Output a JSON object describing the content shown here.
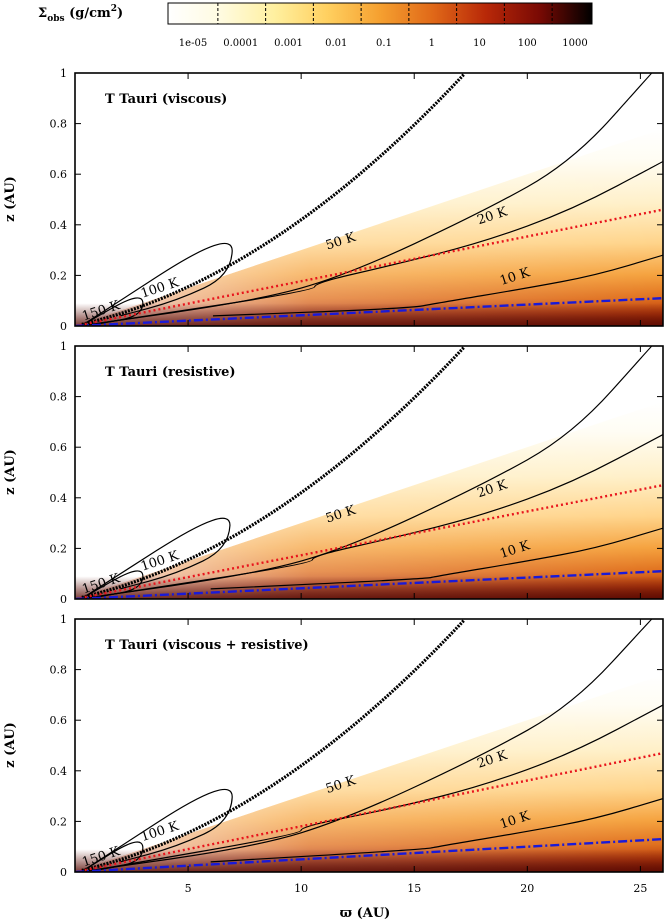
{
  "chart_data": {
    "type": "heatmap",
    "colorbar": {
      "label": "Σobs (g/cm2)",
      "label_parts": {
        "sigma": "Σ",
        "sub": "obs",
        "unit_open": " (g/cm",
        "sup": "2",
        "unit_close": ")"
      },
      "ticks": [
        "1e-05",
        "0.0001",
        "0.001",
        "0.01",
        "0.1",
        "1",
        "10",
        "100",
        "1000"
      ],
      "scale": "log",
      "colormap": [
        "#ffffff",
        "#fffbe0",
        "#fff0a0",
        "#ffd060",
        "#f5a030",
        "#e06818",
        "#b82808",
        "#7a0a04",
        "#000000"
      ]
    },
    "xlabel": "ϖ (AU)",
    "ylabel": "z (AU)",
    "xlim": [
      0,
      26
    ],
    "ylim": [
      0,
      1
    ],
    "xticks": [
      "5",
      "10",
      "15",
      "20",
      "25"
    ],
    "yticks": [
      "0",
      "0.2",
      "0.4",
      "0.6",
      "0.8",
      "1"
    ],
    "panels": [
      {
        "title": "T Tauri (viscous)",
        "photosphere_end_x": 17.2,
        "contours": [
          {
            "label": "150 K",
            "x": [
              0.3,
              3.0,
              3.0,
              1.0
            ],
            "y": [
              0.002,
              0.14,
              0.04,
              0.008
            ]
          },
          {
            "label": "100 K",
            "x": [
              0.3,
              7.0,
              6.9,
              4.5,
              2.0
            ],
            "y": [
              0.002,
              0.39,
              0.2,
              0.1,
              0.04
            ]
          },
          {
            "label": "50 K",
            "x": [
              0.5,
              8,
              12,
              18,
              22,
              25.5
            ],
            "y": [
              0.004,
              0.1,
              0.2,
              0.45,
              0.65,
              1.0
            ]
          },
          {
            "label": "20 K",
            "x": [
              1.0,
              10.6,
              10.6,
              14,
              18,
              22,
              26
            ],
            "y": [
              0.01,
              0.14,
              0.17,
              0.24,
              0.33,
              0.46,
              0.65
            ]
          },
          {
            "label": "10 K",
            "x": [
              6.1,
              14.8,
              16,
              20,
              23,
              26
            ],
            "y": [
              0.04,
              0.07,
              0.09,
              0.15,
              0.2,
              0.28
            ]
          }
        ],
        "z_tau_irradiation": {
          "x": [
            0,
            26
          ],
          "y": [
            0,
            0.46
          ]
        },
        "z_tau_midplane": {
          "x": [
            0,
            26
          ],
          "y": [
            0,
            0.11
          ]
        },
        "contour_labels": [
          {
            "text": "150 K",
            "x": 1.2,
            "y": 0.045
          },
          {
            "text": "100 K",
            "x": 3.8,
            "y": 0.135
          },
          {
            "text": "50 K",
            "x": 11.8,
            "y": 0.32
          },
          {
            "text": "20 K",
            "x": 18.5,
            "y": 0.42
          },
          {
            "text": "10 K",
            "x": 19.5,
            "y": 0.18
          }
        ]
      },
      {
        "title": "T Tauri (resistive)",
        "photosphere_end_x": 17.2,
        "contours": [
          {
            "label": "150 K",
            "x": [
              0.3,
              3.0,
              3.0,
              1.0
            ],
            "y": [
              0.002,
              0.14,
              0.04,
              0.008
            ]
          },
          {
            "label": "100 K",
            "x": [
              0.3,
              6.9,
              6.8,
              4.5,
              2.0
            ],
            "y": [
              0.002,
              0.38,
              0.2,
              0.1,
              0.04
            ]
          },
          {
            "label": "50 K",
            "x": [
              0.5,
              8,
              12,
              18,
              22,
              25.5
            ],
            "y": [
              0.004,
              0.1,
              0.2,
              0.45,
              0.65,
              1.0
            ]
          },
          {
            "label": "20 K",
            "x": [
              1.0,
              10.5,
              10.5,
              14,
              18,
              22,
              26
            ],
            "y": [
              0.01,
              0.14,
              0.17,
              0.24,
              0.33,
              0.46,
              0.65
            ]
          },
          {
            "label": "10 K",
            "x": [
              6.0,
              15.5,
              16,
              20,
              23,
              26
            ],
            "y": [
              0.04,
              0.08,
              0.09,
              0.15,
              0.2,
              0.28
            ]
          }
        ],
        "z_tau_irradiation": {
          "x": [
            0,
            26
          ],
          "y": [
            0,
            0.45
          ]
        },
        "z_tau_midplane": {
          "x": [
            0,
            26
          ],
          "y": [
            0,
            0.11
          ]
        },
        "contour_labels": [
          {
            "text": "150 K",
            "x": 1.2,
            "y": 0.045
          },
          {
            "text": "100 K",
            "x": 3.8,
            "y": 0.135
          },
          {
            "text": "50 K",
            "x": 11.8,
            "y": 0.32
          },
          {
            "text": "20 K",
            "x": 18.5,
            "y": 0.42
          },
          {
            "text": "10 K",
            "x": 19.5,
            "y": 0.18
          }
        ]
      },
      {
        "title": "T Tauri (viscous + resistive)",
        "photosphere_end_x": 17.2,
        "contours": [
          {
            "label": "150 K",
            "x": [
              0.3,
              3.0,
              3.0,
              1.0
            ],
            "y": [
              0.002,
              0.15,
              0.04,
              0.008
            ]
          },
          {
            "label": "100 K",
            "x": [
              0.3,
              7.0,
              6.9,
              4.5,
              2.0
            ],
            "y": [
              0.002,
              0.39,
              0.2,
              0.1,
              0.04
            ]
          },
          {
            "label": "50 K",
            "x": [
              0.5,
              8,
              12,
              18,
              22,
              25.5
            ],
            "y": [
              0.004,
              0.1,
              0.21,
              0.46,
              0.66,
              1.0
            ]
          },
          {
            "label": "20 K",
            "x": [
              1.0,
              10.0,
              10.0,
              14,
              18,
              22,
              26
            ],
            "y": [
              0.01,
              0.15,
              0.18,
              0.25,
              0.34,
              0.47,
              0.66
            ]
          },
          {
            "label": "10 K",
            "x": [
              6.0,
              15.5,
              16,
              20,
              23,
              26
            ],
            "y": [
              0.04,
              0.09,
              0.1,
              0.16,
              0.21,
              0.29
            ]
          }
        ],
        "z_tau_irradiation": {
          "x": [
            0,
            26
          ],
          "y": [
            0,
            0.47
          ]
        },
        "z_tau_midplane": {
          "x": [
            0,
            26
          ],
          "y": [
            0,
            0.13
          ]
        },
        "contour_labels": [
          {
            "text": "150 K",
            "x": 1.2,
            "y": 0.045
          },
          {
            "text": "100 K",
            "x": 3.8,
            "y": 0.145
          },
          {
            "text": "50 K",
            "x": 11.8,
            "y": 0.33
          },
          {
            "text": "20 K",
            "x": 18.5,
            "y": 0.43
          },
          {
            "text": "10 K",
            "x": 19.5,
            "y": 0.19
          }
        ]
      }
    ]
  }
}
